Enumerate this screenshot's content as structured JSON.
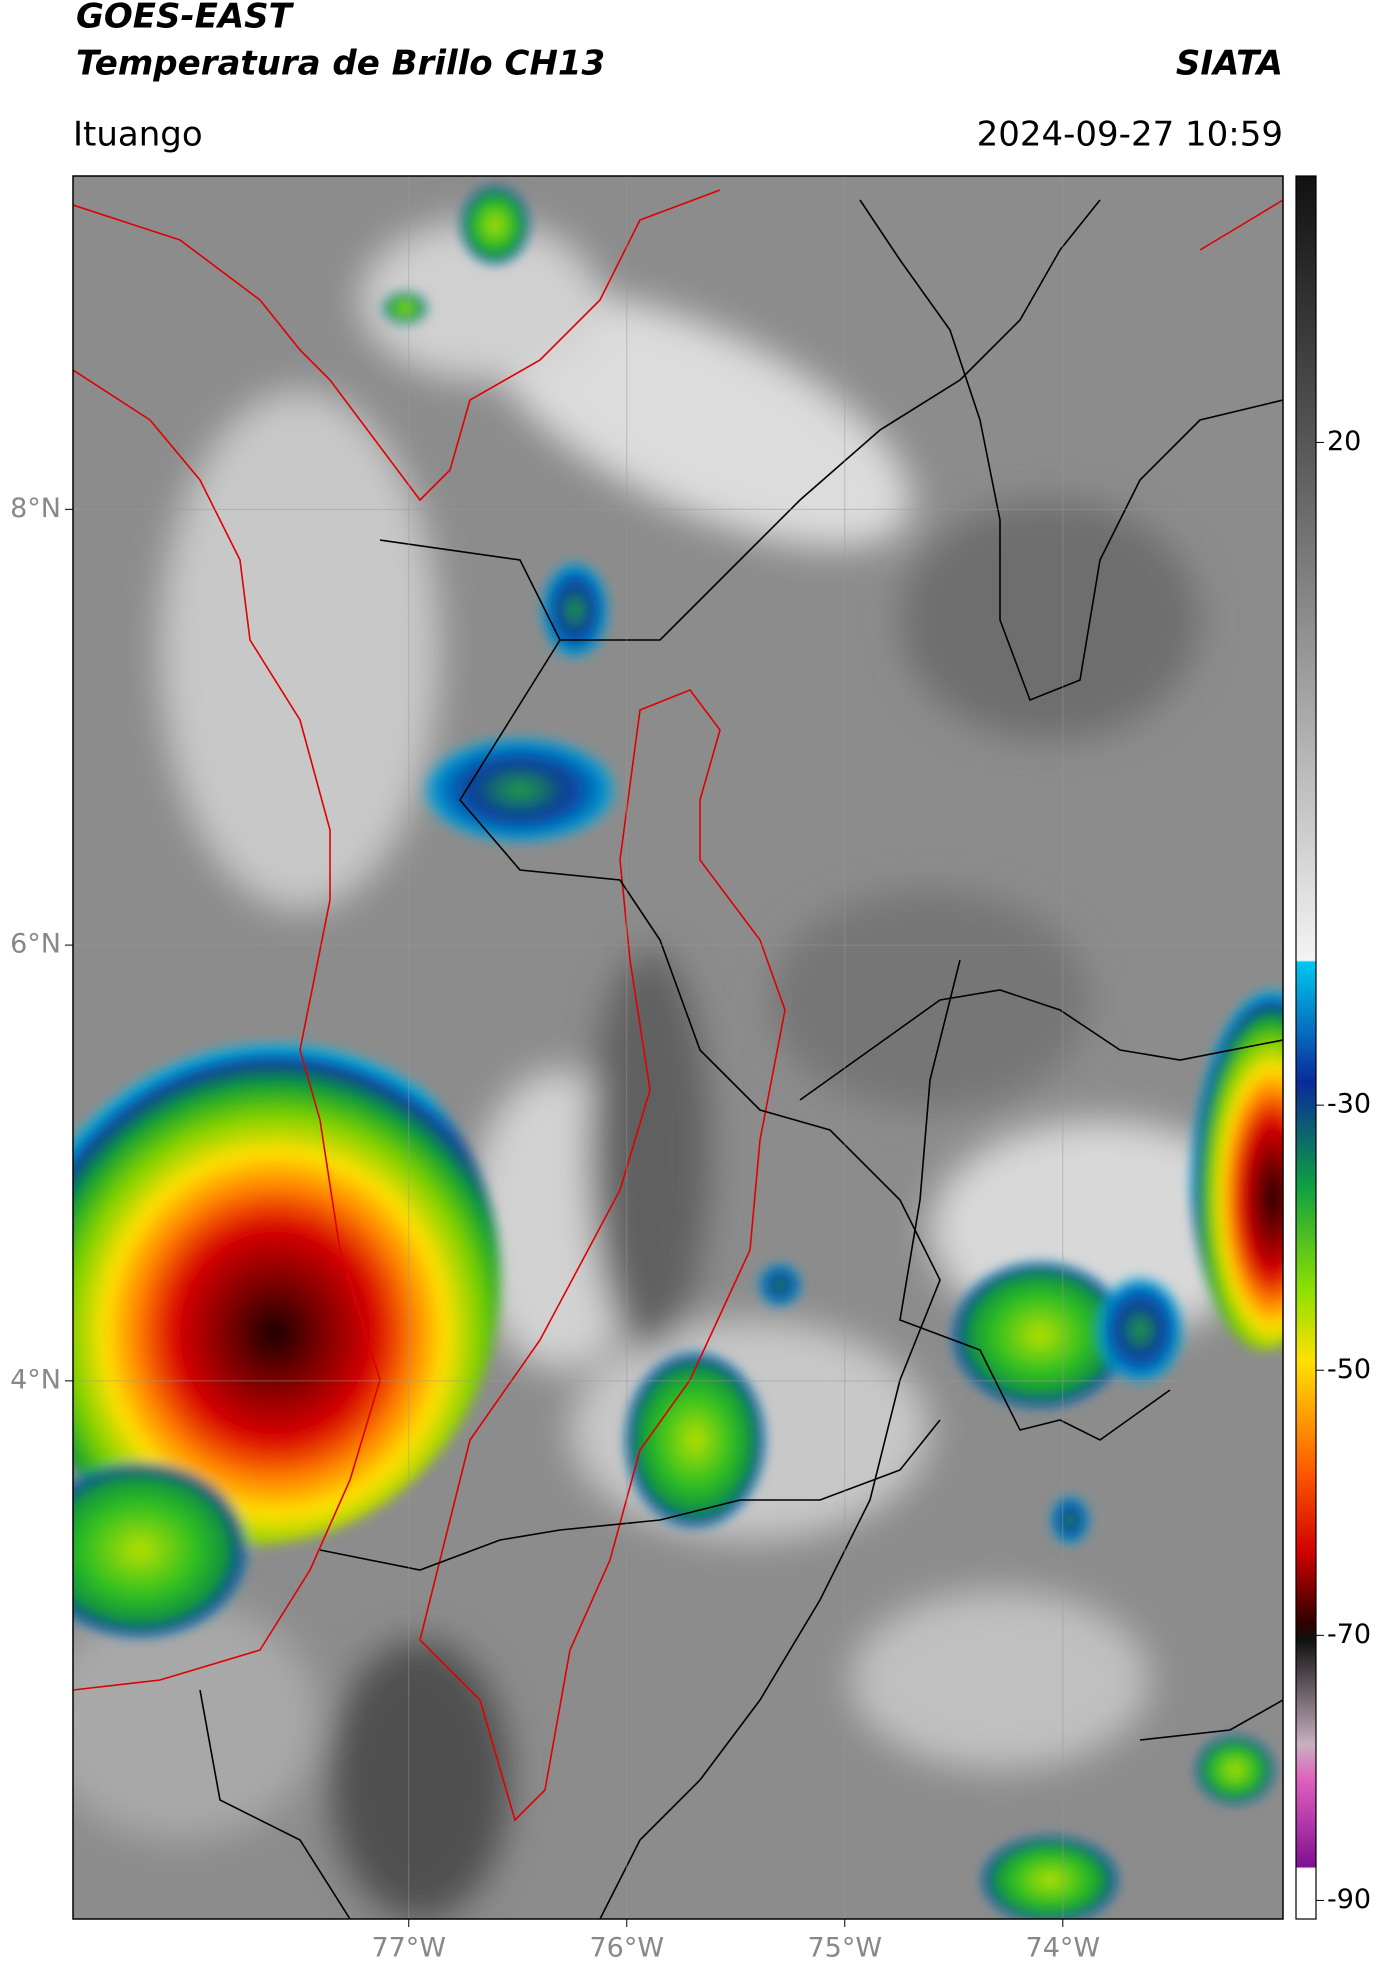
{
  "header": {
    "title": "GOES-EAST",
    "subtitle": "Temperatura de Brillo CH13",
    "source": "SIATA",
    "location": "Ituango",
    "datetime": "2024-09-27 10:59"
  },
  "chart_data": {
    "type": "map",
    "xlim": [
      -78.54,
      -72.99
    ],
    "ylim": [
      1.53,
      9.53
    ],
    "xticks": [
      {
        "value": -77,
        "label": "77°W"
      },
      {
        "value": -76,
        "label": "76°W"
      },
      {
        "value": -75,
        "label": "75°W"
      },
      {
        "value": -74,
        "label": "74°W"
      }
    ],
    "yticks": [
      {
        "value": 8,
        "label": "8°N"
      },
      {
        "value": 6,
        "label": "6°N"
      },
      {
        "value": 4,
        "label": "4°N"
      }
    ],
    "grid": true,
    "colorbar": {
      "clim": [
        -91.4,
        40.1
      ],
      "ticks": [
        20,
        -30,
        -50,
        -70,
        -90
      ]
    }
  }
}
